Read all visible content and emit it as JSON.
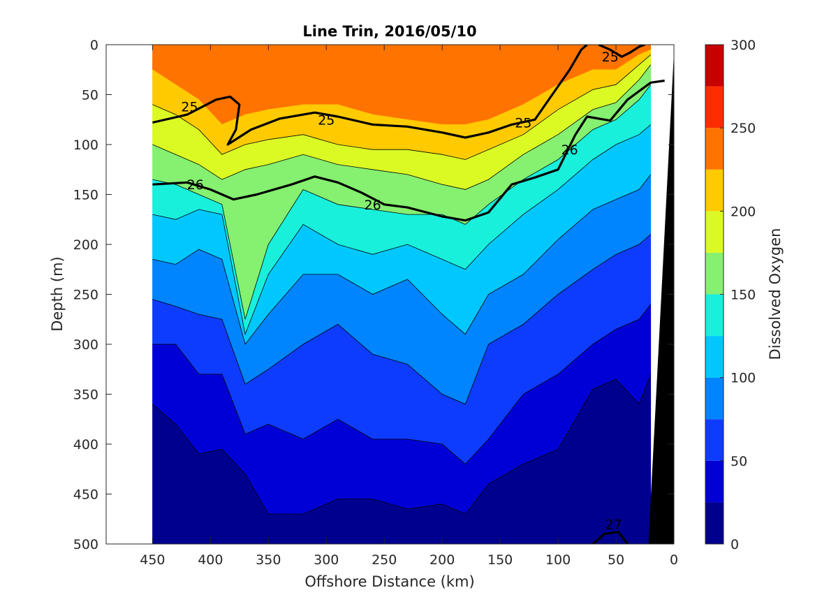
{
  "chart_data": {
    "type": "heatmap",
    "title": "Line Trin, 2016/05/10",
    "xlabel": "Offshore Distance (km)",
    "ylabel": "Depth (m)",
    "colorbar_label": "Dissolved Oxygen",
    "xlim": [
      490,
      0
    ],
    "ylim": [
      0,
      500
    ],
    "x_ticks": [
      "450",
      "400",
      "350",
      "300",
      "250",
      "200",
      "150",
      "100",
      "50",
      "0"
    ],
    "y_ticks": [
      "0",
      "50",
      "100",
      "150",
      "200",
      "250",
      "300",
      "350",
      "400",
      "450",
      "500"
    ],
    "colorbar_ticks": [
      "0",
      "50",
      "100",
      "150",
      "200",
      "250",
      "300"
    ],
    "colorbar_range": [
      0,
      300
    ],
    "levels": [
      0,
      25,
      50,
      75,
      100,
      125,
      150,
      175,
      200,
      225,
      250,
      275,
      300
    ],
    "level_colors": [
      "#00008f",
      "#0000d6",
      "#0e3cff",
      "#0085ff",
      "#00c8ff",
      "#18f0dc",
      "#86f070",
      "#dbfa24",
      "#ffcb00",
      "#ff7300",
      "#ff2c00",
      "#c80000"
    ],
    "contour_labels": [
      "25",
      "25",
      "25",
      "25",
      "26",
      "26",
      "26",
      "27"
    ],
    "profiles": [
      {
        "x": 450,
        "depths": [
          25,
          60,
          100,
          135,
          170,
          215,
          255,
          300,
          360
        ]
      },
      {
        "x": 430,
        "depths": [
          40,
          70,
          110,
          140,
          175,
          220,
          262,
          300,
          380
        ]
      },
      {
        "x": 410,
        "depths": [
          55,
          85,
          120,
          150,
          165,
          205,
          270,
          330,
          410
        ]
      },
      {
        "x": 390,
        "depths": [
          80,
          110,
          135,
          160,
          170,
          215,
          275,
          330,
          405
        ]
      },
      {
        "x": 370,
        "depths": [
          70,
          100,
          125,
          275,
          290,
          300,
          340,
          390,
          430
        ]
      },
      {
        "x": 350,
        "depths": [
          65,
          95,
          120,
          200,
          230,
          270,
          325,
          380,
          470
        ]
      },
      {
        "x": 320,
        "depths": [
          60,
          90,
          110,
          145,
          180,
          230,
          300,
          395,
          470
        ]
      },
      {
        "x": 290,
        "depths": [
          60,
          100,
          120,
          160,
          200,
          230,
          280,
          375,
          455
        ]
      },
      {
        "x": 260,
        "depths": [
          70,
          105,
          125,
          165,
          210,
          250,
          310,
          395,
          455
        ]
      },
      {
        "x": 230,
        "depths": [
          75,
          105,
          130,
          170,
          200,
          235,
          320,
          395,
          465
        ]
      },
      {
        "x": 200,
        "depths": [
          80,
          110,
          140,
          170,
          215,
          270,
          350,
          400,
          460
        ]
      },
      {
        "x": 180,
        "depths": [
          80,
          115,
          145,
          180,
          225,
          290,
          360,
          420,
          470
        ]
      },
      {
        "x": 160,
        "depths": [
          75,
          105,
          135,
          160,
          200,
          250,
          300,
          395,
          440
        ]
      },
      {
        "x": 130,
        "depths": [
          60,
          90,
          110,
          135,
          170,
          230,
          280,
          350,
          420
        ]
      },
      {
        "x": 100,
        "depths": [
          40,
          65,
          90,
          115,
          145,
          195,
          250,
          330,
          405
        ]
      },
      {
        "x": 70,
        "depths": [
          25,
          45,
          65,
          85,
          115,
          165,
          225,
          300,
          345
        ]
      },
      {
        "x": 50,
        "depths": [
          25,
          40,
          58,
          75,
          100,
          155,
          210,
          285,
          335
        ]
      },
      {
        "x": 30,
        "depths": [
          10,
          20,
          35,
          55,
          90,
          145,
          200,
          275,
          360
        ]
      },
      {
        "x": 20,
        "depths": [
          5,
          10,
          20,
          40,
          80,
          130,
          190,
          260,
          330
        ]
      }
    ],
    "isopycnals": [
      {
        "label": "25",
        "points": [
          [
            450,
            78
          ],
          [
            420,
            70
          ],
          [
            395,
            55
          ],
          [
            383,
            52
          ],
          [
            375,
            60
          ],
          [
            378,
            85
          ],
          [
            385,
            100
          ],
          [
            365,
            85
          ],
          [
            340,
            74
          ],
          [
            310,
            68
          ],
          [
            290,
            72
          ],
          [
            260,
            80
          ],
          [
            230,
            82
          ],
          [
            200,
            88
          ],
          [
            180,
            93
          ],
          [
            160,
            88
          ],
          [
            140,
            80
          ],
          [
            120,
            75
          ],
          [
            105,
            50
          ],
          [
            90,
            25
          ],
          [
            80,
            5
          ],
          [
            75,
            0
          ]
        ]
      },
      {
        "label": "25",
        "points": [
          [
            65,
            0
          ],
          [
            55,
            5
          ],
          [
            45,
            12
          ],
          [
            38,
            8
          ],
          [
            30,
            2
          ],
          [
            25,
            0
          ]
        ]
      },
      {
        "label": "26",
        "points": [
          [
            450,
            140
          ],
          [
            420,
            138
          ],
          [
            400,
            145
          ],
          [
            380,
            155
          ],
          [
            360,
            150
          ],
          [
            330,
            140
          ],
          [
            310,
            132
          ],
          [
            290,
            138
          ],
          [
            270,
            148
          ],
          [
            250,
            160
          ],
          [
            230,
            163
          ],
          [
            200,
            172
          ],
          [
            180,
            176
          ],
          [
            160,
            168
          ],
          [
            140,
            140
          ],
          [
            120,
            133
          ],
          [
            100,
            125
          ],
          [
            85,
            90
          ],
          [
            75,
            72
          ],
          [
            55,
            76
          ],
          [
            40,
            55
          ],
          [
            20,
            38
          ],
          [
            8,
            36
          ]
        ]
      },
      {
        "label": "27",
        "points": [
          [
            70,
            500
          ],
          [
            60,
            490
          ],
          [
            48,
            488
          ],
          [
            40,
            500
          ]
        ]
      }
    ]
  }
}
